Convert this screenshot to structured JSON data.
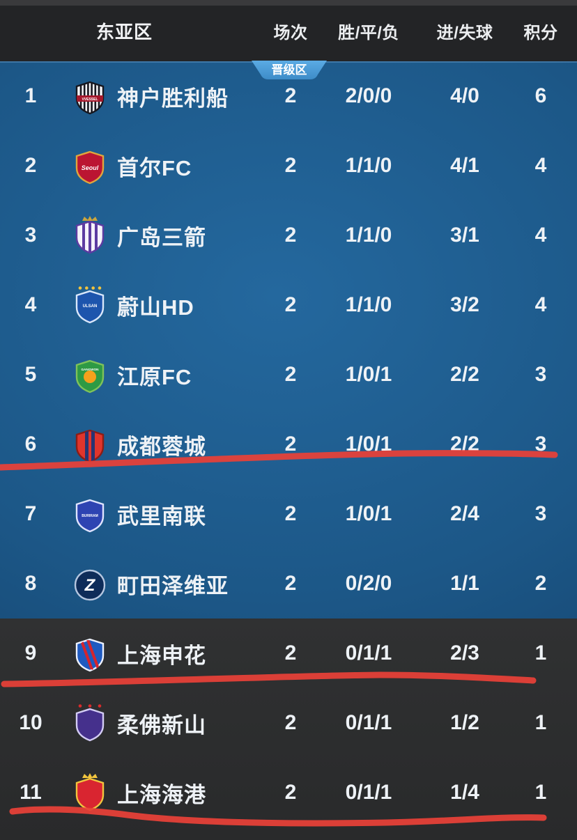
{
  "header": {
    "title": "东亚区",
    "columns": [
      {
        "key": "matches",
        "label": "场次"
      },
      {
        "key": "wdl",
        "label": "胜/平/负"
      },
      {
        "key": "goals",
        "label": "进/失球"
      },
      {
        "key": "points",
        "label": "积分"
      }
    ]
  },
  "badge": {
    "label": "晋级区",
    "color_top": "#5babe4",
    "color_bottom": "#3d8cc8"
  },
  "zones": {
    "qualification_row_count": 8,
    "blue_color": "#1c5787",
    "dark_color": "#2c2d2f"
  },
  "annotations": {
    "description": "hand-drawn red underlines",
    "color": "#e84138",
    "underlined_ranks": [
      6,
      9,
      11
    ]
  },
  "table": {
    "rows": [
      {
        "rank": "1",
        "team": "神户胜利船",
        "matches": "2",
        "wdl": "2/0/0",
        "goals": "4/0",
        "points": "6",
        "crest": {
          "icon": "vissel-kobe-crest",
          "body": "shield",
          "fill": "#f4f4f6",
          "stroke": "#17171f",
          "stripes": {
            "color": "#17171f",
            "count": 6,
            "width": 2.6
          },
          "band": {
            "color": "#a5192d",
            "label": "VVESSEL",
            "labelColor": "#ffffff",
            "labelSize": 5
          }
        }
      },
      {
        "rank": "2",
        "team": "首尔FC",
        "matches": "2",
        "wdl": "1/1/0",
        "goals": "4/1",
        "points": "4",
        "crest": {
          "icon": "fc-seoul-crest",
          "body": "shield",
          "fill": "#bb1532",
          "stroke": "#e0a53c",
          "label": {
            "text": "Seoul",
            "color": "#ffffff",
            "size": 9,
            "italic": true,
            "y": 34
          }
        }
      },
      {
        "rank": "3",
        "team": "广岛三箭",
        "matches": "2",
        "wdl": "1/1/0",
        "goals": "3/1",
        "points": "4",
        "crest": {
          "icon": "sanfrecce-hiroshima-crest",
          "body": "shield",
          "fill": "#f6f3fb",
          "stroke": "#5d3ba1",
          "stripes": {
            "color": "#5d3ba1",
            "count": 3,
            "width": 4
          },
          "ornament": {
            "type": "crown",
            "color": "#c9a53f"
          }
        }
      },
      {
        "rank": "4",
        "team": "蔚山HD",
        "matches": "2",
        "wdl": "1/1/0",
        "goals": "3/2",
        "points": "4",
        "crest": {
          "icon": "ulsan-hd-crest",
          "body": "shield",
          "fill": "#1d55ad",
          "stroke": "#d9e7fa",
          "ornament": {
            "type": "stars",
            "color": "#f2c43c",
            "count": 4
          },
          "label": {
            "text": "ULSAN",
            "color": "#ffffff",
            "size": 6,
            "y": 31
          }
        }
      },
      {
        "rank": "5",
        "team": "江原FC",
        "matches": "2",
        "wdl": "1/0/1",
        "goals": "2/2",
        "points": "3",
        "crest": {
          "icon": "gangwon-fc-crest",
          "body": "shield",
          "fill": "#2e9a44",
          "stroke": "#7fc25a",
          "center": {
            "color": "#f6a11c",
            "r": 9
          },
          "label": {
            "text": "GANGWON",
            "color": "#ffffff",
            "size": 4.6,
            "y": 22
          }
        }
      },
      {
        "rank": "6",
        "team": "成都蓉城",
        "matches": "2",
        "wdl": "1/0/1",
        "goals": "2/2",
        "points": "3",
        "crest": {
          "icon": "chengdu-rongcheng-crest",
          "body": "shield",
          "fill": "#e0352c",
          "stroke": "#8c1d16",
          "stripes": {
            "color": "#273472",
            "count": 2,
            "width": 5
          }
        }
      },
      {
        "rank": "7",
        "team": "武里南联",
        "matches": "2",
        "wdl": "1/0/1",
        "goals": "2/4",
        "points": "3",
        "crest": {
          "icon": "buriram-united-crest",
          "body": "shield",
          "fill": "#2e44b2",
          "stroke": "#dfe4ff",
          "label": {
            "text": "BURIRAM",
            "color": "#ffffff",
            "size": 5,
            "y": 32
          }
        }
      },
      {
        "rank": "8",
        "team": "町田泽维亚",
        "matches": "2",
        "wdl": "0/2/0",
        "goals": "1/1",
        "points": "2",
        "crest": {
          "icon": "machida-zelvia-crest",
          "body": "circle",
          "fill": "#0e2c59",
          "stroke": "#b6c7e0",
          "label": {
            "text": "Z",
            "color": "#ffffff",
            "size": 24,
            "italic": true,
            "y": 38
          }
        }
      },
      {
        "rank": "9",
        "team": "上海申花",
        "matches": "2",
        "wdl": "0/1/1",
        "goals": "2/3",
        "points": "1",
        "crest": {
          "icon": "shanghai-shenhua-crest",
          "body": "shield",
          "fill": "#1f5ac0",
          "stroke": "#eef2ff",
          "stripes": {
            "color": "#d6242c",
            "count": 2,
            "width": 4,
            "rotate": -20
          }
        }
      },
      {
        "rank": "10",
        "team": "柔佛新山",
        "matches": "2",
        "wdl": "0/1/1",
        "goals": "1/2",
        "points": "1",
        "crest": {
          "icon": "johor-crest",
          "body": "shield",
          "fill": "#45308c",
          "stroke": "#d3ccf4",
          "ornament": {
            "type": "stars",
            "color": "#d92b2b",
            "count": 3
          }
        }
      },
      {
        "rank": "11",
        "team": "上海海港",
        "matches": "2",
        "wdl": "0/1/1",
        "goals": "1/4",
        "points": "1",
        "crest": {
          "icon": "shanghai-port-crest",
          "body": "shield",
          "fill": "#d92530",
          "stroke": "#f2c53e",
          "ornament": {
            "type": "crown",
            "color": "#f2c53e"
          }
        }
      }
    ]
  }
}
